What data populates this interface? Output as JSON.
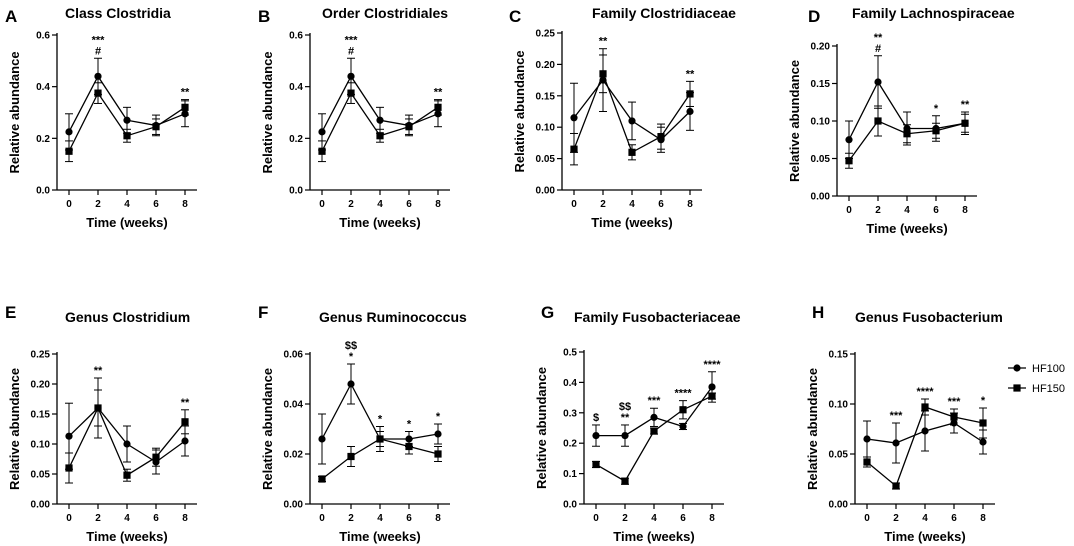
{
  "legend": [
    {
      "name": "HF100",
      "marker": "circle"
    },
    {
      "name": "HF150",
      "marker": "square"
    }
  ],
  "chart_data": [
    {
      "letter": "A",
      "type": "line",
      "title": "Class Clostridia",
      "xlabel": "Time (weeks)",
      "ylabel": "Relative abundance",
      "x": [
        0,
        2,
        4,
        6,
        8
      ],
      "ylim": [
        0,
        0.6
      ],
      "yticks": [
        "0.0",
        "0.2",
        "0.4",
        "0.6"
      ],
      "ytick_values": [
        0,
        0.2,
        0.4,
        0.6
      ],
      "series": [
        {
          "name": "HF100",
          "values": [
            0.225,
            0.44,
            0.27,
            0.25,
            0.295
          ],
          "err": [
            0.07,
            0.07,
            0.05,
            0.04,
            0.05
          ]
        },
        {
          "name": "HF150",
          "values": [
            0.15,
            0.375,
            0.21,
            0.245,
            0.32
          ],
          "err": [
            0.04,
            0.04,
            0.025,
            0.03,
            0.03
          ]
        }
      ],
      "annotations": [
        {
          "x": 2,
          "lines": [
            "***",
            "#"
          ]
        },
        {
          "x": 8,
          "lines": [
            "**"
          ]
        }
      ]
    },
    {
      "letter": "B",
      "type": "line",
      "title": "Order Clostridiales",
      "xlabel": "Time (weeks)",
      "ylabel": "Relative abundance",
      "x": [
        0,
        2,
        4,
        6,
        8
      ],
      "ylim": [
        0,
        0.6
      ],
      "yticks": [
        "0.0",
        "0.2",
        "0.4",
        "0.6"
      ],
      "ytick_values": [
        0,
        0.2,
        0.4,
        0.6
      ],
      "series": [
        {
          "name": "HF100",
          "values": [
            0.225,
            0.44,
            0.27,
            0.25,
            0.295
          ],
          "err": [
            0.07,
            0.07,
            0.05,
            0.04,
            0.05
          ]
        },
        {
          "name": "HF150",
          "values": [
            0.15,
            0.375,
            0.21,
            0.245,
            0.32
          ],
          "err": [
            0.04,
            0.04,
            0.025,
            0.03,
            0.03
          ]
        }
      ],
      "annotations": [
        {
          "x": 2,
          "lines": [
            "***",
            "#"
          ]
        },
        {
          "x": 8,
          "lines": [
            "**"
          ]
        }
      ]
    },
    {
      "letter": "C",
      "type": "line",
      "title": "Family Clostridiaceae",
      "xlabel": "Time (weeks)",
      "ylabel": "Relative abundance",
      "x": [
        0,
        2,
        4,
        6,
        8
      ],
      "ylim": [
        0,
        0.25
      ],
      "yticks": [
        "0.00",
        "0.05",
        "0.10",
        "0.15",
        "0.20",
        "0.25"
      ],
      "ytick_values": [
        0,
        0.05,
        0.1,
        0.15,
        0.2,
        0.25
      ],
      "series": [
        {
          "name": "HF100",
          "values": [
            0.115,
            0.175,
            0.11,
            0.08,
            0.125
          ],
          "err": [
            0.055,
            0.05,
            0.03,
            0.02,
            0.03
          ]
        },
        {
          "name": "HF150",
          "values": [
            0.065,
            0.185,
            0.06,
            0.085,
            0.153
          ],
          "err": [
            0.025,
            0.03,
            0.012,
            0.02,
            0.02
          ]
        }
      ],
      "annotations": [
        {
          "x": 2,
          "lines": [
            "**"
          ]
        },
        {
          "x": 8,
          "lines": [
            "**"
          ]
        }
      ]
    },
    {
      "letter": "D",
      "type": "line",
      "title": "Family Lachnospiraceae",
      "xlabel": "Time (weeks)",
      "ylabel": "Relative abundance",
      "x": [
        0,
        2,
        4,
        6,
        8
      ],
      "ylim": [
        0,
        0.2
      ],
      "yticks": [
        "0.00",
        "0.05",
        "0.10",
        "0.15",
        "0.20"
      ],
      "ytick_values": [
        0,
        0.05,
        0.1,
        0.15,
        0.2
      ],
      "series": [
        {
          "name": "HF100",
          "values": [
            0.075,
            0.152,
            0.09,
            0.09,
            0.097
          ],
          "err": [
            0.025,
            0.035,
            0.022,
            0.017,
            0.015
          ]
        },
        {
          "name": "HF150",
          "values": [
            0.047,
            0.1,
            0.083,
            0.087,
            0.097
          ],
          "err": [
            0.01,
            0.02,
            0.012,
            0.01,
            0.012
          ]
        }
      ],
      "annotations": [
        {
          "x": 2,
          "lines": [
            "**",
            "#"
          ]
        },
        {
          "x": 6,
          "lines": [
            "*"
          ]
        },
        {
          "x": 8,
          "lines": [
            "**"
          ]
        }
      ]
    },
    {
      "letter": "E",
      "type": "line",
      "title": "Genus Clostridium",
      "xlabel": "Time (weeks)",
      "ylabel": "Relative abundance",
      "x": [
        0,
        2,
        4,
        6,
        8
      ],
      "ylim": [
        0,
        0.25
      ],
      "yticks": [
        "0.00",
        "0.05",
        "0.10",
        "0.15",
        "0.20",
        "0.25"
      ],
      "ytick_values": [
        0,
        0.05,
        0.1,
        0.15,
        0.2,
        0.25
      ],
      "series": [
        {
          "name": "HF100",
          "values": [
            0.113,
            0.16,
            0.1,
            0.07,
            0.105
          ],
          "err": [
            0.055,
            0.05,
            0.03,
            0.02,
            0.025
          ]
        },
        {
          "name": "HF150",
          "values": [
            0.06,
            0.16,
            0.048,
            0.078,
            0.137
          ],
          "err": [
            0.025,
            0.03,
            0.01,
            0.015,
            0.02
          ]
        }
      ],
      "annotations": [
        {
          "x": 2,
          "lines": [
            "**"
          ]
        },
        {
          "x": 8,
          "lines": [
            "**"
          ]
        }
      ]
    },
    {
      "letter": "F",
      "type": "line",
      "title": "Genus Ruminococcus",
      "xlabel": "Time (weeks)",
      "ylabel": "Relative abundance",
      "x": [
        0,
        2,
        4,
        6,
        8
      ],
      "ylim": [
        0,
        0.06
      ],
      "yticks": [
        "0.00",
        "0.02",
        "0.04",
        "0.06"
      ],
      "ytick_values": [
        0,
        0.02,
        0.04,
        0.06
      ],
      "series": [
        {
          "name": "HF100",
          "values": [
            0.026,
            0.048,
            0.026,
            0.026,
            0.028
          ],
          "err": [
            0.01,
            0.008,
            0.005,
            0.003,
            0.004
          ]
        },
        {
          "name": "HF150",
          "values": [
            0.01,
            0.019,
            0.026,
            0.023,
            0.02
          ],
          "err": [
            0.001,
            0.004,
            0.003,
            0.003,
            0.003
          ]
        }
      ],
      "annotations": [
        {
          "x": 2,
          "lines": [
            "$$",
            "*"
          ]
        },
        {
          "x": 4,
          "lines": [
            "*"
          ]
        },
        {
          "x": 6,
          "lines": [
            "*"
          ]
        },
        {
          "x": 8,
          "lines": [
            "*"
          ]
        }
      ]
    },
    {
      "letter": "G",
      "type": "line",
      "title": "Family Fusobacteriaceae",
      "xlabel": "Time (weeks)",
      "ylabel": "Relative abundance",
      "x": [
        0,
        2,
        4,
        6,
        8
      ],
      "ylim": [
        0,
        0.5
      ],
      "yticks": [
        "0.0",
        "0.1",
        "0.2",
        "0.3",
        "0.4",
        "0.5"
      ],
      "ytick_values": [
        0,
        0.1,
        0.2,
        0.3,
        0.4,
        0.5
      ],
      "series": [
        {
          "name": "HF100",
          "values": [
            0.225,
            0.225,
            0.285,
            0.255,
            0.385
          ],
          "err": [
            0.035,
            0.035,
            0.03,
            0.01,
            0.05
          ]
        },
        {
          "name": "HF150",
          "values": [
            0.13,
            0.075,
            0.24,
            0.31,
            0.355
          ],
          "err": [
            0.01,
            0.01,
            0.01,
            0.03,
            0.01
          ]
        }
      ],
      "annotations": [
        {
          "x": 0,
          "lines": [
            "$"
          ]
        },
        {
          "x": 2,
          "lines": [
            "$$",
            "**"
          ]
        },
        {
          "x": 4,
          "lines": [
            "***"
          ]
        },
        {
          "x": 6,
          "lines": [
            "****"
          ]
        },
        {
          "x": 8,
          "lines": [
            "****"
          ]
        }
      ]
    },
    {
      "letter": "H",
      "type": "line",
      "title": "Genus Fusobacterium",
      "xlabel": "Time (weeks)",
      "ylabel": "Relative abundance",
      "x": [
        0,
        2,
        4,
        6,
        8
      ],
      "ylim": [
        0,
        0.15
      ],
      "yticks": [
        "0.00",
        "0.05",
        "0.10",
        "0.15"
      ],
      "ytick_values": [
        0,
        0.05,
        0.1,
        0.15
      ],
      "series": [
        {
          "name": "HF100",
          "values": [
            0.065,
            0.061,
            0.073,
            0.081,
            0.062
          ],
          "err": [
            0.018,
            0.02,
            0.02,
            0.01,
            0.012
          ]
        },
        {
          "name": "HF150",
          "values": [
            0.042,
            0.018,
            0.097,
            0.087,
            0.081
          ],
          "err": [
            0.005,
            0.003,
            0.008,
            0.008,
            0.015
          ]
        }
      ],
      "annotations": [
        {
          "x": 2,
          "lines": [
            "***"
          ]
        },
        {
          "x": 4,
          "lines": [
            "****"
          ]
        },
        {
          "x": 6,
          "lines": [
            "***"
          ]
        },
        {
          "x": 8,
          "lines": [
            "*"
          ]
        }
      ]
    }
  ]
}
